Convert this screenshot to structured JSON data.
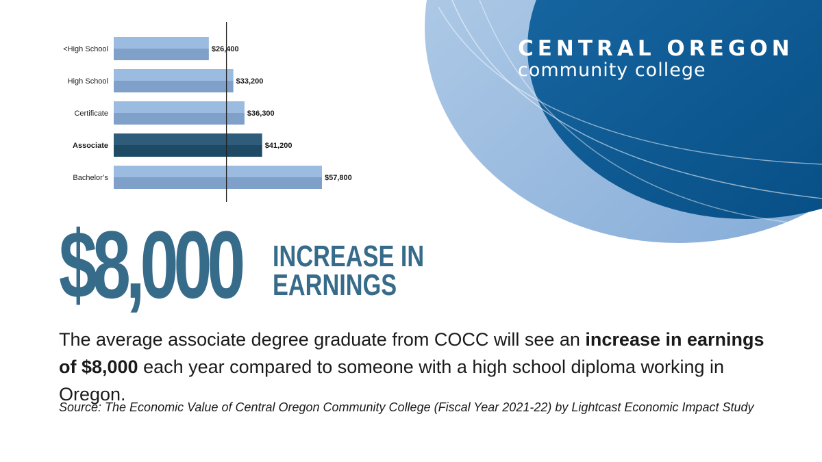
{
  "brand": {
    "line1": "CENTRAL OREGON",
    "line2": "community college"
  },
  "headline": {
    "amount": "$8,000",
    "label_line1": "INCREASE IN",
    "label_line2": "EARNINGS"
  },
  "description": {
    "part1": "The average associate degree graduate from COCC will see an ",
    "bold": "increase in earnings of $8,000",
    "part2": " each year compared to someone with a high school diploma working in Oregon."
  },
  "source": "Source: The Economic Value of Central Oregon Community College (Fiscal Year 2021-22) by Lightcast Economic Impact Study",
  "colors": {
    "accent": "#376b8a",
    "bar": "#8aabd2",
    "bar_highlight": "#1f4a65",
    "brand_blue": "#0b5a92"
  },
  "chart_data": {
    "type": "bar",
    "orientation": "horizontal",
    "categories": [
      "<High School",
      "High School",
      "Certificate",
      "Associate",
      "Bachelor’s"
    ],
    "values": [
      26400,
      33200,
      36300,
      41200,
      57800
    ],
    "value_labels": [
      "$26,400",
      "$33,200",
      "$36,300",
      "$41,200",
      "$57,800"
    ],
    "highlight": "Associate",
    "reference_line": 33200,
    "xlim": [
      0,
      57800
    ]
  }
}
